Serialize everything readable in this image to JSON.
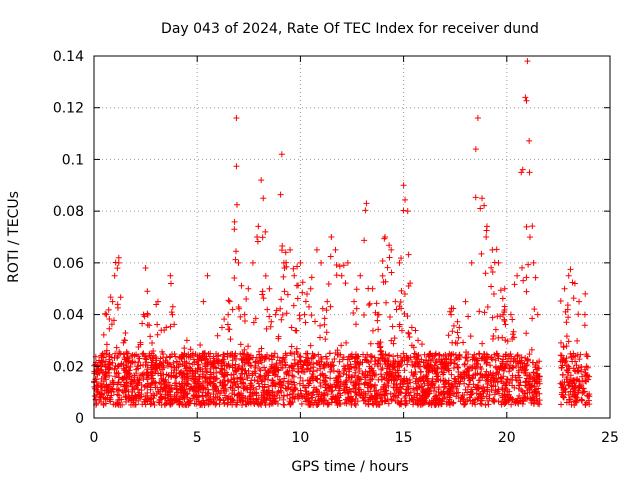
{
  "chart_data": {
    "type": "scatter",
    "title": "Day 043 of 2024, Rate Of TEC Index for receiver dund",
    "xlabel": "GPS time / hours",
    "ylabel": "ROTI / TECUs",
    "xlim": [
      0,
      25
    ],
    "ylim": [
      0,
      0.14
    ],
    "xticks": [
      "0",
      "5",
      "10",
      "15",
      "20",
      "25"
    ],
    "yticks": [
      "0",
      "0.02",
      "0.04",
      "0.06",
      "0.08",
      "0.1",
      "0.12",
      "0.14"
    ],
    "grid": true,
    "marker": "+",
    "color": "#ff0000",
    "data_gap_hours": [
      21.6,
      22.6
    ],
    "series": [
      {
        "x": [
          0.1,
          0.3,
          0.6,
          0.9,
          1.0,
          1.2,
          1.5,
          1.8,
          2.1,
          2.4,
          2.5,
          2.8,
          3.1,
          3.5,
          3.7,
          3.8,
          4.1,
          4.5,
          4.9,
          5.3,
          5.5,
          5.8,
          6.2,
          6.5,
          6.8,
          6.9,
          7.0,
          7.3,
          7.7,
          7.9,
          8.1,
          8.2,
          8.3,
          8.5,
          8.8,
          9.1,
          9.2,
          9.5,
          9.7,
          10.0,
          10.2,
          10.5,
          10.8,
          11.0,
          11.3,
          11.5,
          11.7,
          12.0,
          12.3,
          12.6,
          12.9,
          13.2,
          13.5,
          13.8,
          14.1,
          14.4,
          14.6,
          14.8,
          15.0,
          15.2,
          15.4,
          15.7,
          16.0,
          16.3,
          16.6,
          17.0,
          17.3,
          17.7,
          18.0,
          18.3,
          18.5,
          18.6,
          18.8,
          19.0,
          19.3,
          19.6,
          19.9,
          20.2,
          20.5,
          20.7,
          20.9,
          21.0,
          21.1,
          21.3,
          21.5,
          22.8,
          23.0,
          23.3,
          23.5,
          23.8
        ],
        "y": [
          0.015,
          0.02,
          0.04,
          0.045,
          0.055,
          0.06,
          0.03,
          0.015,
          0.02,
          0.04,
          0.058,
          0.025,
          0.045,
          0.035,
          0.055,
          0.04,
          0.02,
          0.03,
          0.015,
          0.045,
          0.055,
          0.02,
          0.035,
          0.04,
          0.073,
          0.116,
          0.06,
          0.04,
          0.06,
          0.07,
          0.092,
          0.085,
          0.072,
          0.05,
          0.04,
          0.102,
          0.06,
          0.065,
          0.055,
          0.06,
          0.04,
          0.05,
          0.065,
          0.06,
          0.045,
          0.07,
          0.065,
          0.055,
          0.06,
          0.045,
          0.055,
          0.083,
          0.05,
          0.04,
          0.07,
          0.065,
          0.045,
          0.06,
          0.09,
          0.08,
          0.035,
          0.03,
          0.02,
          0.025,
          0.015,
          0.02,
          0.04,
          0.035,
          0.045,
          0.06,
          0.104,
          0.116,
          0.085,
          0.07,
          0.065,
          0.06,
          0.05,
          0.04,
          0.055,
          0.095,
          0.124,
          0.138,
          0.095,
          0.06,
          0.04,
          0.05,
          0.055,
          0.052,
          0.045,
          0.048
        ]
      }
    ]
  }
}
